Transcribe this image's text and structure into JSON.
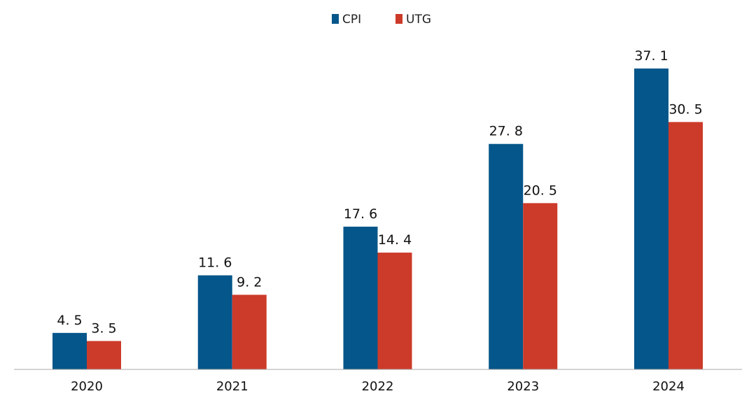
{
  "colors": {
    "CPI": "#05568a",
    "UTG": "#cc3a29",
    "axis": "#aaaaaa"
  },
  "chart_data": {
    "type": "bar",
    "title": "",
    "xlabel": "",
    "ylabel": "",
    "categories": [
      "2020",
      "2021",
      "2022",
      "2023",
      "2024"
    ],
    "series": [
      {
        "name": "CPI",
        "values": [
          4.5,
          11.6,
          17.6,
          27.8,
          37.1
        ],
        "labels": [
          "4. 5",
          "11. 6",
          "17. 6",
          "27. 8",
          "37. 1"
        ]
      },
      {
        "name": "UTG",
        "values": [
          3.5,
          9.2,
          14.4,
          20.5,
          30.5
        ],
        "labels": [
          "3. 5",
          "9. 2",
          "14. 4",
          "20. 5",
          "30. 5"
        ]
      }
    ],
    "ylim": [
      0,
      40
    ],
    "grid": false,
    "legend": "top-center",
    "data_labels": true
  }
}
